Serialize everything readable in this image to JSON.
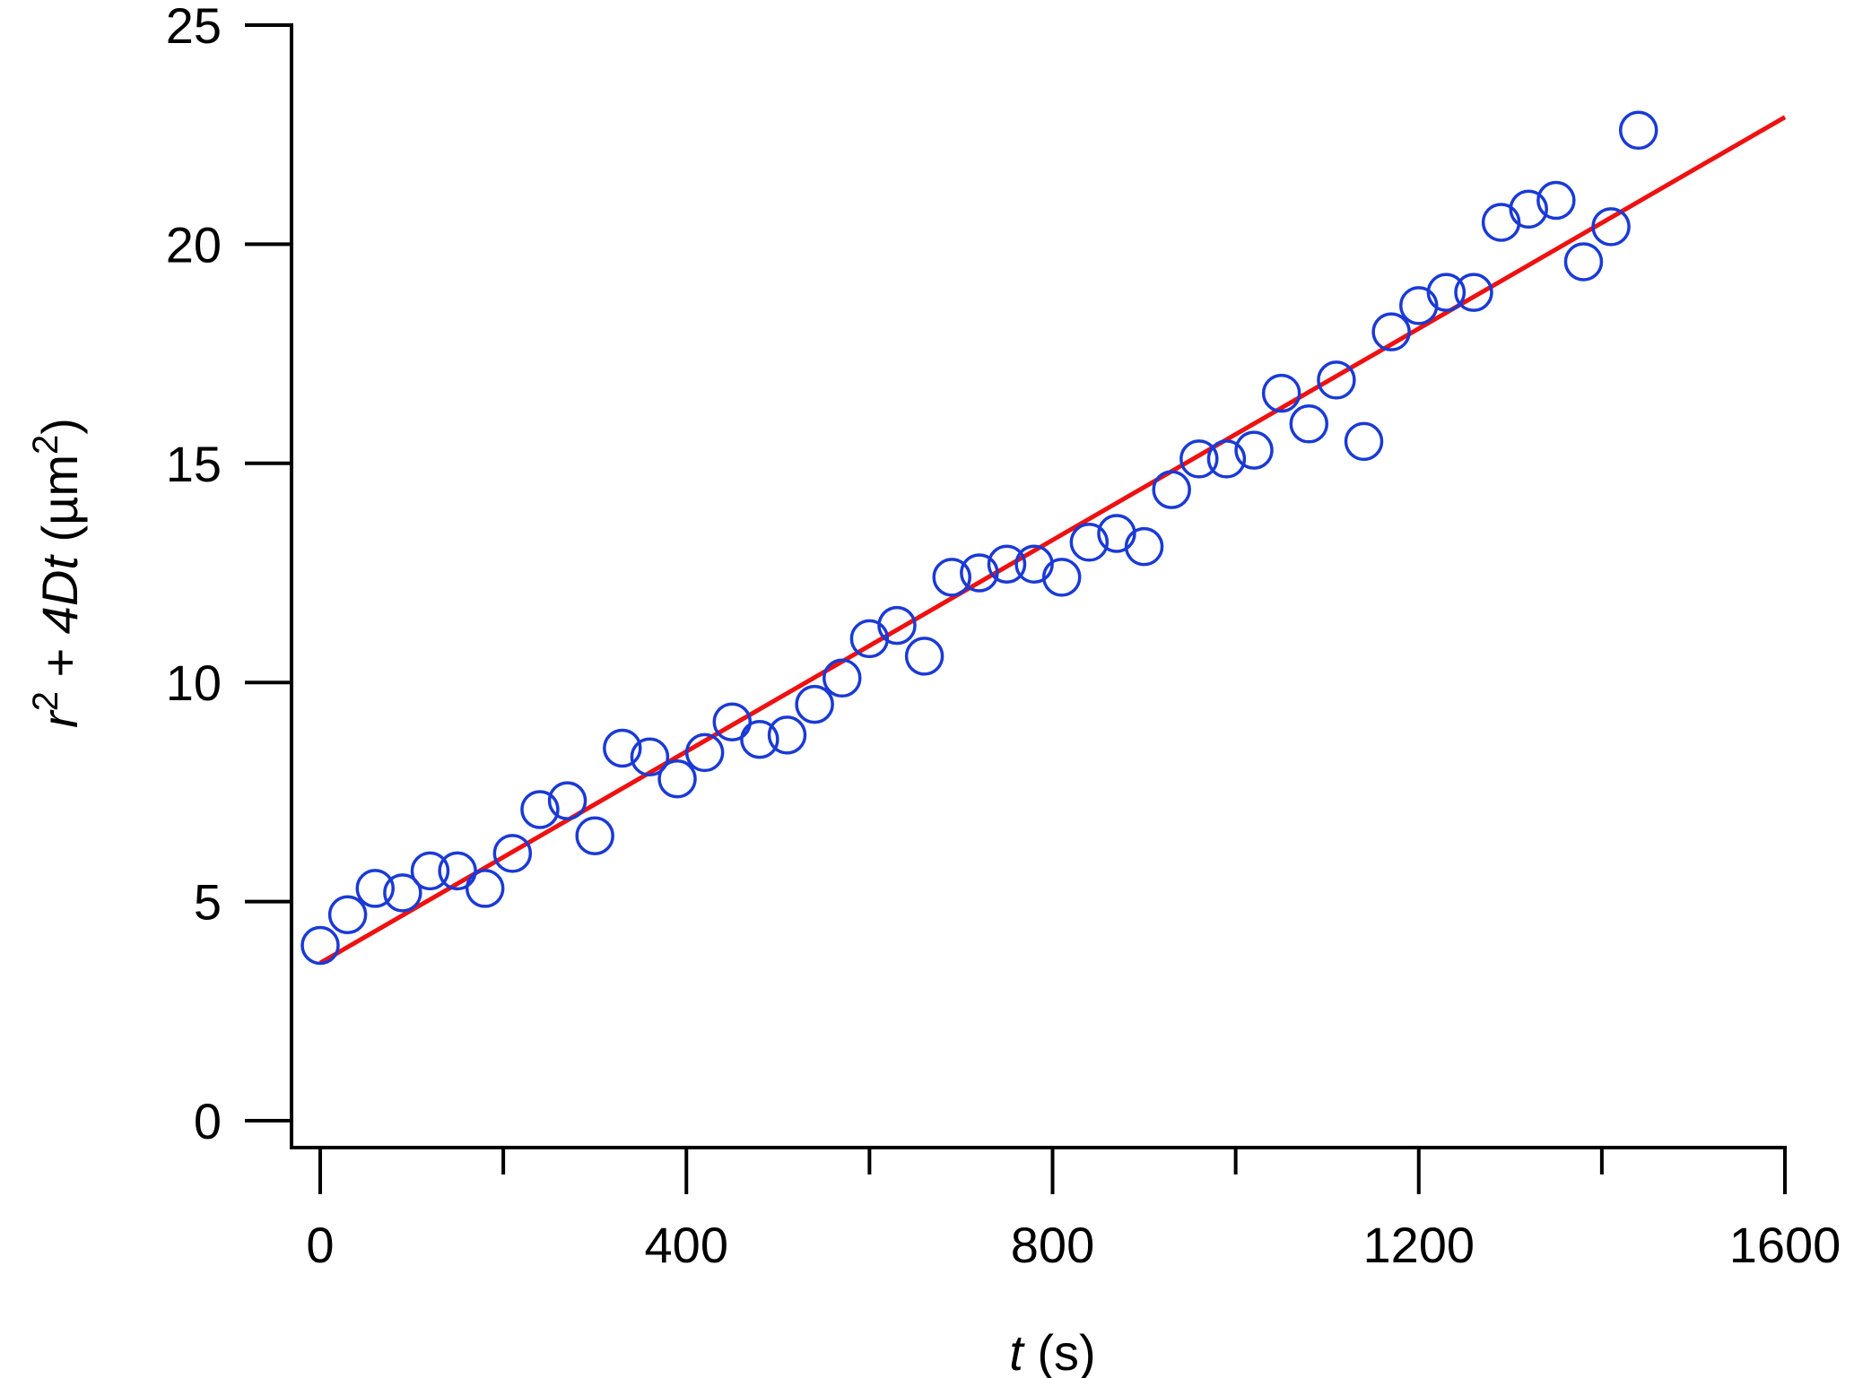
{
  "chart_data": {
    "type": "scatter",
    "title": "",
    "xlabel_parts": [
      {
        "text": "t",
        "italic": true
      },
      {
        "text": " (s)",
        "italic": false
      }
    ],
    "ylabel_parts": [
      {
        "text": "r",
        "italic": true,
        "sup": false
      },
      {
        "text": "2",
        "italic": false,
        "sup": true
      },
      {
        "text": " + ",
        "italic": false,
        "sup": false
      },
      {
        "text": "4Dt",
        "italic": true,
        "sup": false
      },
      {
        "text": " (µm",
        "italic": false,
        "sup": false
      },
      {
        "text": "2",
        "italic": false,
        "sup": true
      },
      {
        "text": ")",
        "italic": false,
        "sup": false
      }
    ],
    "xlim": [
      0,
      1600
    ],
    "ylim": [
      0,
      25
    ],
    "xticks": [
      0,
      400,
      800,
      1200,
      1600
    ],
    "xminor": [
      200,
      600,
      1000,
      1400
    ],
    "yticks": [
      0,
      5,
      10,
      15,
      20,
      25
    ],
    "grid": false,
    "legend": "none",
    "colors": {
      "points": "#1a3ad6",
      "fit": "#ee1111",
      "axes": "#000000"
    },
    "series": [
      {
        "kind": "points",
        "x": [
          0,
          30,
          60,
          90,
          120,
          150,
          180,
          210,
          240,
          270,
          300,
          330,
          360,
          390,
          420,
          450,
          480,
          510,
          540,
          570,
          600,
          630,
          660,
          690,
          720,
          750,
          780,
          810,
          840,
          870,
          900,
          930,
          960,
          990,
          1020,
          1050,
          1080,
          1110,
          1140,
          1170,
          1200,
          1230,
          1260,
          1290,
          1320,
          1350,
          1380,
          1410,
          1440
        ],
        "y": [
          4.0,
          4.7,
          5.3,
          5.2,
          5.7,
          5.7,
          5.3,
          6.1,
          7.1,
          7.3,
          6.5,
          8.5,
          8.3,
          7.8,
          8.4,
          9.1,
          8.7,
          8.8,
          9.5,
          10.1,
          11.0,
          11.3,
          10.6,
          12.4,
          12.5,
          12.7,
          12.7,
          12.4,
          13.2,
          13.4,
          13.1,
          14.4,
          15.1,
          15.1,
          15.3,
          16.6,
          15.9,
          16.9,
          15.5,
          18.0,
          18.6,
          18.9,
          18.9,
          20.5,
          20.8,
          21.0,
          19.6,
          20.4,
          22.6
        ]
      },
      {
        "kind": "fit-line",
        "x": [
          0,
          1600
        ],
        "y": [
          3.6,
          22.9
        ]
      }
    ]
  }
}
